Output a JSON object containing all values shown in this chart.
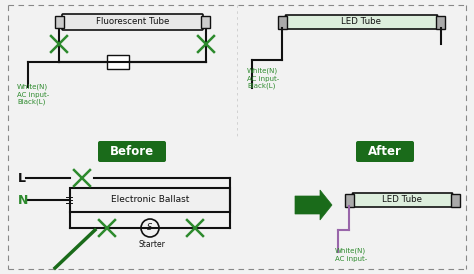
{
  "bg_color": "#f2f2f2",
  "green": "#2d8a2d",
  "dark_green": "#1a6b1a",
  "black": "#111111",
  "white": "#ffffff",
  "gray_cap": "#999999",
  "tube_body": "#e0e0e0",
  "ballast_fill": "#f0f0f0",
  "pink": "#bb88aa",
  "purple": "#6644aa",
  "title_top_left": "Fluorescent Tube",
  "title_top_right": "LED Tube",
  "label_before": "Before",
  "label_after": "After",
  "label_ballast": "Electronic Ballast",
  "label_starter": "Starter",
  "label_L": "L",
  "label_N": "N",
  "wn_left": "White(N)\nAC input-\nBlack(L)",
  "wn_right": "White(N)\nAC input-\nBlack(L)",
  "led_tube_label": "LED Tube"
}
